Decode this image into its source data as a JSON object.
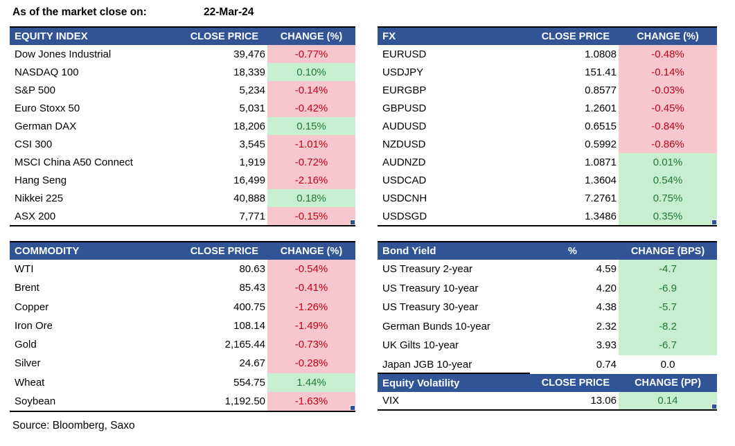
{
  "meta": {
    "as_of_label": "As of the market close on:",
    "as_of_date": "22-Mar-24",
    "source": "Source: Bloomberg, Saxo"
  },
  "colors": {
    "header_bg": "#305496",
    "header_text": "#FFFFFF",
    "negative_bg": "#F7C7CD",
    "negative_text": "#C00018",
    "positive_bg": "#C7EECE",
    "positive_text": "#1F7A35",
    "border": "#000000",
    "corner": "#2F5496",
    "text": "#000000"
  },
  "chart_data": [
    {
      "type": "table",
      "title": "EQUITY INDEX",
      "columns": [
        "EQUITY INDEX",
        "CLOSE PRICE",
        "CHANGE (%)"
      ],
      "rows": [
        [
          "Dow Jones Industrial",
          "39,476",
          "-0.77%"
        ],
        [
          "NASDAQ 100",
          "18,339",
          "0.10%"
        ],
        [
          "S&P 500",
          "5,234",
          "-0.14%"
        ],
        [
          "Euro Stoxx 50",
          "5,031",
          "-0.42%"
        ],
        [
          "German DAX",
          "18,206",
          "0.15%"
        ],
        [
          "CSI 300",
          "3,545",
          "-1.01%"
        ],
        [
          "MSCI China A50 Connect",
          "1,919",
          "-0.72%"
        ],
        [
          "Hang Seng",
          "16,499",
          "-2.16%"
        ],
        [
          "Nikkei 225",
          "40,888",
          "0.18%"
        ],
        [
          "ASX 200",
          "7,771",
          "-0.15%"
        ]
      ],
      "change_styles": [
        "neg",
        "pos",
        "neg",
        "neg",
        "pos",
        "neg",
        "neg",
        "neg",
        "pos",
        "neg"
      ]
    },
    {
      "type": "table",
      "title": "FX",
      "columns": [
        "FX",
        "CLOSE PRICE",
        "CHANGE (%)"
      ],
      "rows": [
        [
          "EURUSD",
          "1.0808",
          "-0.48%"
        ],
        [
          "USDJPY",
          "151.41",
          "-0.14%"
        ],
        [
          "EURGBP",
          "0.8577",
          "-0.03%"
        ],
        [
          "GBPUSD",
          "1.2601",
          "-0.45%"
        ],
        [
          "AUDUSD",
          "0.6515",
          "-0.84%"
        ],
        [
          "NZDUSD",
          "0.5992",
          "-0.86%"
        ],
        [
          "AUDNZD",
          "1.0871",
          "0.01%"
        ],
        [
          "USDCAD",
          "1.3604",
          "0.54%"
        ],
        [
          "USDCNH",
          "7.2761",
          "0.75%"
        ],
        [
          "USDSGD",
          "1.3486",
          "0.35%"
        ]
      ],
      "change_styles": [
        "neg",
        "neg",
        "neg",
        "neg",
        "neg",
        "neg",
        "pos",
        "pos",
        "pos",
        "pos"
      ]
    },
    {
      "type": "table",
      "title": "COMMODITY",
      "columns": [
        "COMMODITY",
        "CLOSE PRICE",
        "CHANGE (%)"
      ],
      "rows": [
        [
          "WTI",
          "80.63",
          "-0.54%"
        ],
        [
          "Brent",
          "85.43",
          "-0.41%"
        ],
        [
          "Copper",
          "400.75",
          "-1.26%"
        ],
        [
          "Iron Ore",
          "108.14",
          "-1.49%"
        ],
        [
          "Gold",
          "2,165.44",
          "-0.73%"
        ],
        [
          "Silver",
          "24.67",
          "-0.28%"
        ],
        [
          "Wheat",
          "554.75",
          "1.44%"
        ],
        [
          "Soybean",
          "1,192.50",
          "-1.63%"
        ]
      ],
      "change_styles": [
        "neg",
        "neg",
        "neg",
        "neg",
        "neg",
        "neg",
        "pos",
        "neg"
      ]
    },
    {
      "type": "table",
      "title": "Bond Yield",
      "columns": [
        "Bond Yield",
        "%",
        "CHANGE (BPS)"
      ],
      "rows": [
        [
          "US Treasury 2-year",
          "4.59",
          "-4.7"
        ],
        [
          "US Treasury 10-year",
          "4.20",
          "-6.9"
        ],
        [
          "US Treasury 30-year",
          "4.38",
          "-5.7"
        ],
        [
          "German Bunds 10-year",
          "2.32",
          "-8.2"
        ],
        [
          "UK Gilts 10-year",
          "3.93",
          "-6.7"
        ],
        [
          "Japan JGB 10-year",
          "0.74",
          "0.0"
        ]
      ],
      "change_styles": [
        "pos",
        "pos",
        "pos",
        "pos",
        "pos",
        "neutral"
      ]
    },
    {
      "type": "table",
      "title": "Equity Volatility",
      "columns": [
        "Equity Volatility",
        "CLOSE PRICE",
        "CHANGE (PP)"
      ],
      "rows": [
        [
          "VIX",
          "13.06",
          "0.14"
        ]
      ],
      "change_styles": [
        "pos"
      ]
    }
  ]
}
